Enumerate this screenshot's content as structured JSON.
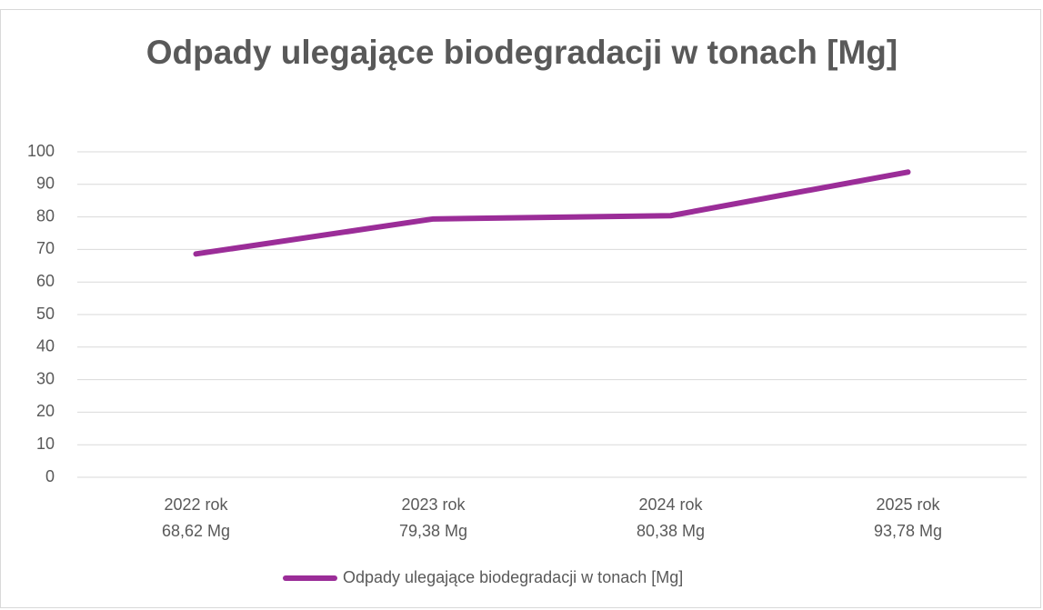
{
  "chart_data": {
    "type": "line",
    "title": "Odpady ulegające biodegradacji w tonach [Mg]",
    "categories": [
      "2022 rok",
      "2023 rok",
      "2024 rok",
      "2025 rok"
    ],
    "series": [
      {
        "name": "Odpady ulegające biodegradacji w tonach [Mg]",
        "color": "#9b2d98",
        "values": [
          68.62,
          79.38,
          80.38,
          93.78
        ],
        "value_labels": [
          "68,62 Mg",
          "79,38 Mg",
          "80,38 Mg",
          "93,78 Mg"
        ]
      }
    ],
    "ylim": [
      0,
      100
    ],
    "yticks": [
      0,
      10,
      20,
      30,
      40,
      50,
      60,
      70,
      80,
      90,
      100
    ],
    "grid": true,
    "legend": "bottom"
  }
}
